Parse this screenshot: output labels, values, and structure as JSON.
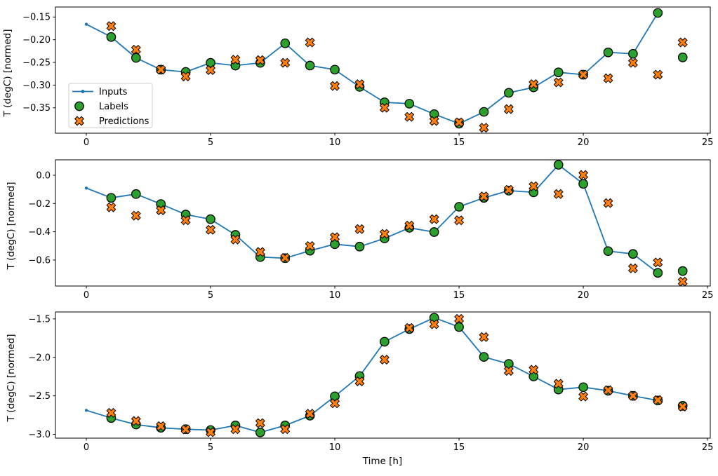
{
  "figure": {
    "background": "#ffffff",
    "colors": {
      "inputs": "#1f77b4",
      "labels": "#2ca02c",
      "predictions": "#ff7f0e",
      "marker_edge": "#000000",
      "spine": "#000000",
      "legend_border": "#cccccc",
      "legend_bg": "#ffffff"
    }
  },
  "chart_data": [
    {
      "type": "line",
      "ylabel": "T (degC) [normed]",
      "xlabel": "",
      "ylim": [
        -0.406,
        -0.128
      ],
      "yticks": [
        -0.15,
        -0.2,
        -0.25,
        -0.3,
        -0.35
      ],
      "ytick_labels": [
        "−0.15",
        "−0.20",
        "−0.25",
        "−0.30",
        "−0.35"
      ],
      "xlim": [
        -1.243,
        25.11
      ],
      "xticks": [
        0,
        5,
        10,
        15,
        20,
        25
      ],
      "xtick_labels": [
        "0",
        "5",
        "10",
        "15",
        "20",
        "25"
      ],
      "grid": false,
      "legend_position": "upper left inside",
      "series": [
        {
          "name": "Inputs",
          "type": "line",
          "marker": "dot",
          "color": "#1f77b4",
          "x": [
            0,
            1,
            2,
            3,
            4,
            5,
            6,
            7,
            8,
            9,
            10,
            11,
            12,
            13,
            14,
            15,
            16,
            17,
            18,
            19,
            20,
            21,
            22,
            23
          ],
          "y": [
            -0.166,
            -0.194,
            -0.24,
            -0.266,
            -0.271,
            -0.251,
            -0.257,
            -0.251,
            -0.208,
            -0.257,
            -0.266,
            -0.304,
            -0.338,
            -0.341,
            -0.364,
            -0.385,
            -0.359,
            -0.317,
            -0.305,
            -0.272,
            -0.277,
            -0.228,
            -0.231,
            -0.141
          ]
        },
        {
          "name": "Labels",
          "type": "scatter",
          "marker": "circle",
          "color": "#2ca02c",
          "edge": "#000000",
          "x": [
            1,
            2,
            3,
            4,
            5,
            6,
            7,
            8,
            9,
            10,
            11,
            12,
            13,
            14,
            15,
            16,
            17,
            18,
            19,
            20,
            21,
            22,
            23,
            24
          ],
          "y": [
            -0.194,
            -0.24,
            -0.266,
            -0.271,
            -0.251,
            -0.257,
            -0.251,
            -0.208,
            -0.257,
            -0.266,
            -0.304,
            -0.338,
            -0.341,
            -0.364,
            -0.385,
            -0.359,
            -0.317,
            -0.305,
            -0.272,
            -0.277,
            -0.228,
            -0.231,
            -0.141,
            -0.239
          ]
        },
        {
          "name": "Predictions",
          "type": "scatter",
          "marker": "X",
          "color": "#ff7f0e",
          "edge": "#000000",
          "x": [
            1,
            2,
            3,
            4,
            5,
            6,
            7,
            8,
            9,
            10,
            11,
            12,
            13,
            14,
            15,
            16,
            17,
            18,
            19,
            20,
            21,
            22,
            23,
            24
          ],
          "y": [
            -0.17,
            -0.222,
            -0.266,
            -0.281,
            -0.267,
            -0.244,
            -0.245,
            -0.251,
            -0.206,
            -0.302,
            -0.298,
            -0.35,
            -0.37,
            -0.379,
            -0.382,
            -0.394,
            -0.353,
            -0.298,
            -0.294,
            -0.277,
            -0.285,
            -0.251,
            -0.277,
            -0.206
          ]
        }
      ]
    },
    {
      "type": "line",
      "ylabel": "T (degC) [normed]",
      "xlabel": "",
      "ylim": [
        -0.784,
        0.109
      ],
      "yticks": [
        0.0,
        -0.2,
        -0.4,
        -0.6
      ],
      "ytick_labels": [
        "0.0",
        "−0.2",
        "−0.4",
        "−0.6"
      ],
      "xlim": [
        -1.243,
        25.11
      ],
      "xticks": [
        0,
        5,
        10,
        15,
        20,
        25
      ],
      "xtick_labels": [
        "0",
        "5",
        "10",
        "15",
        "20",
        "25"
      ],
      "grid": false,
      "series": [
        {
          "name": "Inputs",
          "type": "line",
          "marker": "dot",
          "color": "#1f77b4",
          "x": [
            0,
            1,
            2,
            3,
            4,
            5,
            6,
            7,
            8,
            9,
            10,
            11,
            12,
            13,
            14,
            15,
            16,
            17,
            18,
            19,
            20,
            21,
            22,
            23
          ],
          "y": [
            -0.091,
            -0.16,
            -0.133,
            -0.204,
            -0.278,
            -0.311,
            -0.422,
            -0.579,
            -0.587,
            -0.534,
            -0.488,
            -0.505,
            -0.447,
            -0.372,
            -0.402,
            -0.223,
            -0.16,
            -0.109,
            -0.121,
            0.074,
            -0.061,
            -0.537,
            -0.557,
            -0.691
          ]
        },
        {
          "name": "Labels",
          "type": "scatter",
          "marker": "circle",
          "color": "#2ca02c",
          "edge": "#000000",
          "x": [
            1,
            2,
            3,
            4,
            5,
            6,
            7,
            8,
            9,
            10,
            11,
            12,
            13,
            14,
            15,
            16,
            17,
            18,
            19,
            20,
            21,
            22,
            23,
            24
          ],
          "y": [
            -0.16,
            -0.133,
            -0.204,
            -0.278,
            -0.311,
            -0.422,
            -0.579,
            -0.587,
            -0.534,
            -0.488,
            -0.505,
            -0.447,
            -0.372,
            -0.402,
            -0.223,
            -0.16,
            -0.109,
            -0.121,
            0.074,
            -0.061,
            -0.537,
            -0.557,
            -0.691,
            -0.678
          ]
        },
        {
          "name": "Predictions",
          "type": "scatter",
          "marker": "X",
          "color": "#ff7f0e",
          "edge": "#000000",
          "x": [
            1,
            2,
            3,
            4,
            5,
            6,
            7,
            8,
            9,
            10,
            11,
            12,
            13,
            14,
            15,
            16,
            17,
            18,
            19,
            20,
            21,
            22,
            23,
            24
          ],
          "y": [
            -0.227,
            -0.286,
            -0.248,
            -0.319,
            -0.386,
            -0.455,
            -0.543,
            -0.585,
            -0.501,
            -0.438,
            -0.381,
            -0.415,
            -0.356,
            -0.311,
            -0.319,
            -0.15,
            -0.103,
            -0.078,
            -0.133,
            0.002,
            -0.197,
            -0.659,
            -0.617,
            -0.753
          ]
        }
      ]
    },
    {
      "type": "line",
      "ylabel": "T (degC) [normed]",
      "xlabel": "Time [h]",
      "ylim": [
        -3.05,
        -1.41
      ],
      "yticks": [
        -1.5,
        -2.0,
        -2.5,
        -3.0
      ],
      "ytick_labels": [
        "−1.5",
        "−2.0",
        "−2.5",
        "−3.0"
      ],
      "xlim": [
        -1.243,
        25.11
      ],
      "xticks": [
        0,
        5,
        10,
        15,
        20,
        25
      ],
      "xtick_labels": [
        "0",
        "5",
        "10",
        "15",
        "20",
        "25"
      ],
      "grid": false,
      "series": [
        {
          "name": "Inputs",
          "type": "line",
          "marker": "dot",
          "color": "#1f77b4",
          "x": [
            0,
            1,
            2,
            3,
            4,
            5,
            6,
            7,
            8,
            9,
            10,
            11,
            12,
            13,
            14,
            15,
            16,
            17,
            18,
            19,
            20,
            21,
            22,
            23
          ],
          "y": [
            -2.688,
            -2.788,
            -2.873,
            -2.915,
            -2.934,
            -2.945,
            -2.885,
            -2.976,
            -2.885,
            -2.758,
            -2.506,
            -2.243,
            -1.797,
            -1.632,
            -1.485,
            -1.606,
            -1.994,
            -2.085,
            -2.248,
            -2.418,
            -2.388,
            -2.434,
            -2.5,
            -2.561
          ]
        },
        {
          "name": "Labels",
          "type": "scatter",
          "marker": "circle",
          "color": "#2ca02c",
          "edge": "#000000",
          "x": [
            1,
            2,
            3,
            4,
            5,
            6,
            7,
            8,
            9,
            10,
            11,
            12,
            13,
            14,
            15,
            16,
            17,
            18,
            19,
            20,
            21,
            22,
            23,
            24
          ],
          "y": [
            -2.788,
            -2.873,
            -2.915,
            -2.934,
            -2.945,
            -2.885,
            -2.976,
            -2.885,
            -2.758,
            -2.506,
            -2.243,
            -1.797,
            -1.632,
            -1.485,
            -1.606,
            -1.994,
            -2.085,
            -2.248,
            -2.418,
            -2.388,
            -2.434,
            -2.5,
            -2.561,
            -2.63
          ]
        },
        {
          "name": "Predictions",
          "type": "scatter",
          "marker": "X",
          "color": "#ff7f0e",
          "edge": "#000000",
          "x": [
            1,
            2,
            3,
            4,
            5,
            6,
            7,
            8,
            9,
            10,
            11,
            12,
            13,
            14,
            15,
            16,
            17,
            18,
            19,
            20,
            21,
            22,
            23,
            24
          ],
          "y": [
            -2.721,
            -2.827,
            -2.894,
            -2.936,
            -2.973,
            -2.934,
            -2.855,
            -2.934,
            -2.733,
            -2.597,
            -2.312,
            -2.03,
            -1.618,
            -1.57,
            -1.5,
            -1.736,
            -2.176,
            -2.161,
            -2.343,
            -2.509,
            -2.427,
            -2.5,
            -2.555,
            -2.64
          ]
        }
      ]
    }
  ]
}
